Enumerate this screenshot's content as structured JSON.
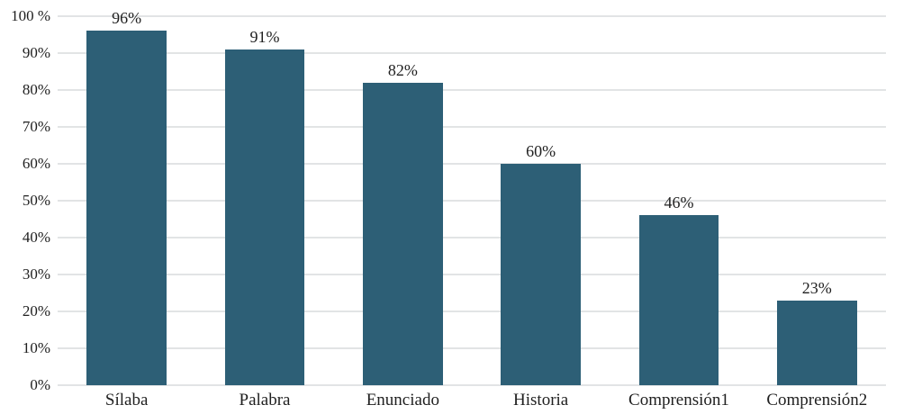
{
  "chart_data": {
    "type": "bar",
    "title": "",
    "categories": [
      "Sílaba",
      "Palabra",
      "Enunciado",
      "Historia",
      "Comprensión1",
      "Comprensión2"
    ],
    "values": [
      96,
      91,
      82,
      60,
      46,
      23
    ],
    "data_labels": [
      "96%",
      "91%",
      "82%",
      "60%",
      "46%",
      "23%"
    ],
    "y_ticks": [
      {
        "value": 0,
        "label": "0%"
      },
      {
        "value": 10,
        "label": "10%"
      },
      {
        "value": 20,
        "label": "20%"
      },
      {
        "value": 30,
        "label": "30%"
      },
      {
        "value": 40,
        "label": "40%"
      },
      {
        "value": 50,
        "label": "50%"
      },
      {
        "value": 60,
        "label": "60%"
      },
      {
        "value": 70,
        "label": "70%"
      },
      {
        "value": 80,
        "label": "80%"
      },
      {
        "value": 90,
        "label": "90%"
      },
      {
        "value": 100,
        "label": "100 %"
      }
    ],
    "ylim": [
      0,
      100
    ],
    "xlabel": "",
    "ylabel": "",
    "grid": "horizontal",
    "legend": "none",
    "colors": {
      "bar": "#2D5F76",
      "gridline": "#E2E4E5",
      "text": "#1F1F1F",
      "background": "#FFFFFF"
    }
  }
}
